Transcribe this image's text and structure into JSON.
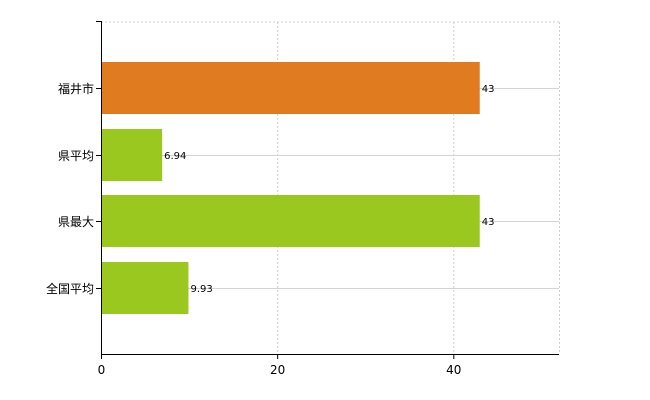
{
  "chart_data": {
    "type": "bar",
    "orientation": "horizontal",
    "categories": [
      "福井市",
      "県平均",
      "県最大",
      "全国平均"
    ],
    "values": [
      43,
      6.94,
      43,
      9.93
    ],
    "value_labels": [
      "43",
      "6.94",
      "43",
      "9.93"
    ],
    "bar_colors": [
      "#e07b20",
      "#9ac81e",
      "#9ac81e",
      "#9ac81e"
    ],
    "xlim": [
      0,
      52
    ],
    "xticks": [
      0,
      20,
      40
    ],
    "xtick_labels": [
      "0",
      "20",
      "40"
    ],
    "grid": true,
    "legend": "none"
  }
}
